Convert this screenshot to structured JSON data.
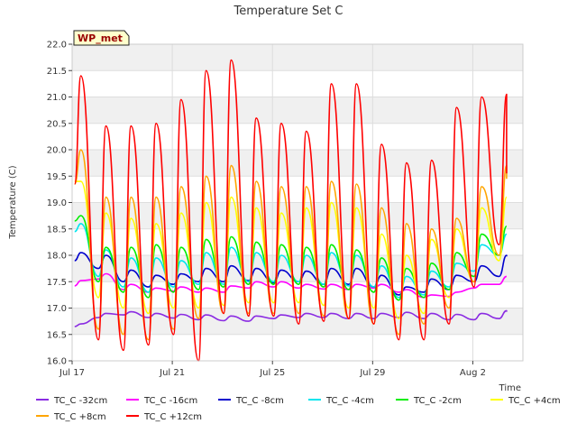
{
  "chart_data": {
    "type": "line",
    "title": "Temperature Set C",
    "xlabel": "Time",
    "ylabel": "Temperature (C)",
    "annotation": "WP_met",
    "xlim": [
      0,
      18
    ],
    "ylim": [
      16.0,
      22.0
    ],
    "x_ticks": [
      {
        "day": 0,
        "label": "Jul 17"
      },
      {
        "day": 4,
        "label": "Jul 21"
      },
      {
        "day": 8,
        "label": "Jul 25"
      },
      {
        "day": 12,
        "label": "Jul 29"
      },
      {
        "day": 16,
        "label": "Aug 2"
      }
    ],
    "y_ticks": [
      16.0,
      16.5,
      17.0,
      17.5,
      18.0,
      18.5,
      19.0,
      19.5,
      20.0,
      20.5,
      21.0,
      21.5,
      22.0
    ],
    "grid": true,
    "legend_position": "bottom",
    "day_peak_hour": 0.35,
    "days": [
      0,
      1,
      2,
      3,
      4,
      5,
      6,
      7,
      8,
      9,
      10,
      11,
      12,
      13,
      14,
      15,
      16,
      17
    ],
    "series": [
      {
        "name": "TC_C -32cm",
        "color": "#8a2be2",
        "start": 16.65,
        "end": 16.93,
        "min": [
          16.62,
          16.82,
          16.87,
          16.82,
          16.81,
          16.78,
          16.76,
          16.75,
          16.8,
          16.82,
          16.82,
          16.8,
          16.8,
          16.82,
          16.8,
          16.78,
          16.78,
          16.8
        ],
        "max": [
          16.7,
          16.9,
          16.93,
          16.9,
          16.88,
          16.87,
          16.85,
          16.85,
          16.87,
          16.9,
          16.9,
          16.9,
          16.9,
          16.92,
          16.9,
          16.88,
          16.9,
          16.95
        ]
      },
      {
        "name": "TC_C -16cm",
        "color": "#ff00ff",
        "start": 17.42,
        "end": 17.6,
        "min": [
          17.45,
          17.55,
          17.35,
          17.3,
          17.32,
          17.3,
          17.3,
          17.38,
          17.4,
          17.38,
          17.36,
          17.35,
          17.38,
          17.3,
          17.2,
          17.22,
          17.38,
          17.45
        ],
        "max": [
          17.52,
          17.65,
          17.45,
          17.38,
          17.4,
          17.38,
          17.42,
          17.5,
          17.5,
          17.45,
          17.45,
          17.45,
          17.45,
          17.35,
          17.25,
          17.3,
          17.45,
          17.6
        ]
      },
      {
        "name": "TC_C -8cm",
        "color": "#0000cd",
        "start": 17.9,
        "end": 17.98,
        "min": [
          17.9,
          17.75,
          17.5,
          17.4,
          17.45,
          17.5,
          17.5,
          17.52,
          17.48,
          17.5,
          17.45,
          17.45,
          17.4,
          17.25,
          17.3,
          17.35,
          17.5,
          17.6
        ],
        "max": [
          18.05,
          18.0,
          17.72,
          17.62,
          17.65,
          17.75,
          17.8,
          17.75,
          17.72,
          17.7,
          17.75,
          17.75,
          17.62,
          17.4,
          17.55,
          17.62,
          17.8,
          18.0
        ]
      },
      {
        "name": "TC_C -4cm",
        "color": "#00e5ee",
        "start": 18.45,
        "end": 18.4,
        "min": [
          18.2,
          17.6,
          17.4,
          17.3,
          17.4,
          17.45,
          17.45,
          17.5,
          17.5,
          17.5,
          17.45,
          17.42,
          17.4,
          17.2,
          17.25,
          17.4,
          17.7,
          18.0
        ],
        "max": [
          18.6,
          18.1,
          17.95,
          17.95,
          17.9,
          18.05,
          18.15,
          18.05,
          18.0,
          18.0,
          18.05,
          18.0,
          17.8,
          17.6,
          17.7,
          17.85,
          18.2,
          18.4
        ]
      },
      {
        "name": "TC_C -2cm",
        "color": "#00ee00",
        "start": 18.65,
        "end": 18.55,
        "min": [
          18.3,
          17.5,
          17.3,
          17.2,
          17.3,
          17.35,
          17.4,
          17.45,
          17.45,
          17.45,
          17.4,
          17.35,
          17.3,
          17.15,
          17.2,
          17.35,
          17.6,
          18.0
        ],
        "max": [
          18.75,
          18.15,
          18.15,
          18.2,
          18.15,
          18.3,
          18.35,
          18.25,
          18.2,
          18.15,
          18.2,
          18.1,
          17.95,
          17.75,
          17.85,
          18.05,
          18.4,
          18.55
        ]
      },
      {
        "name": "TC_C +4cm",
        "color": "#ffff00",
        "start": 19.4,
        "end": 19.1,
        "min": [
          18.0,
          17.2,
          17.0,
          16.9,
          17.0,
          17.0,
          17.05,
          17.1,
          17.1,
          17.1,
          17.05,
          17.0,
          17.0,
          16.8,
          16.9,
          17.2,
          17.5,
          17.9
        ],
        "max": [
          19.4,
          18.8,
          18.7,
          18.6,
          18.8,
          19.0,
          19.1,
          18.9,
          18.8,
          18.9,
          19.0,
          18.9,
          18.4,
          18.0,
          18.3,
          18.5,
          18.9,
          19.1
        ]
      },
      {
        "name": "TC_C +8cm",
        "color": "#ffa500",
        "start": 19.35,
        "end": 19.45,
        "min": [
          17.5,
          16.6,
          16.5,
          16.4,
          16.6,
          16.8,
          16.9,
          16.9,
          16.9,
          16.9,
          16.85,
          16.8,
          16.7,
          16.5,
          16.7,
          17.0,
          17.5,
          18.0
        ],
        "max": [
          20.0,
          19.1,
          19.1,
          19.1,
          19.3,
          19.5,
          19.7,
          19.4,
          19.3,
          19.3,
          19.4,
          19.35,
          18.9,
          18.6,
          18.5,
          18.7,
          19.3,
          19.7
        ]
      },
      {
        "name": "TC_C +12cm",
        "color": "#ff0000",
        "start": 19.35,
        "end": 19.55,
        "min": [
          17.5,
          16.4,
          16.2,
          16.3,
          16.5,
          16.0,
          16.9,
          16.85,
          16.85,
          16.7,
          16.75,
          16.8,
          16.7,
          16.4,
          16.4,
          16.7,
          17.4,
          18.2
        ],
        "max": [
          21.4,
          20.45,
          20.45,
          20.5,
          20.95,
          21.5,
          21.7,
          20.6,
          20.5,
          20.35,
          21.25,
          21.25,
          20.1,
          19.75,
          19.8,
          20.8,
          21.0,
          21.05
        ]
      }
    ]
  }
}
